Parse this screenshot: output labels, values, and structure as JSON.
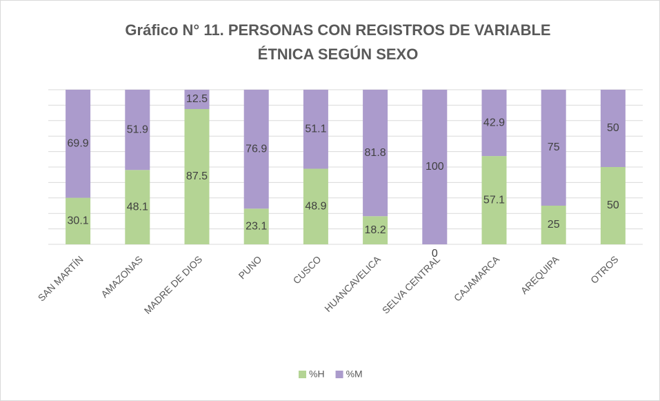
{
  "chart_data": {
    "type": "stacked_bar",
    "title": [
      "Gráfico N° 11. PERSONAS CON REGISTROS DE VARIABLE",
      "ÉTNICA SEGÚN SEXO"
    ],
    "categories": [
      "SAN MARTÍN",
      "AMAZONAS",
      "MADRE DE DIOS",
      "PUNO",
      "CUSCO",
      "HUANCAVELICA",
      "SELVA CENTRAL",
      "CAJAMARCA",
      "AREQUIPA",
      "OTROS"
    ],
    "series": [
      {
        "name": "%H",
        "color": "#b4d494",
        "values": [
          30.1,
          48.1,
          87.5,
          23.1,
          48.9,
          18.2,
          0,
          57.1,
          25,
          50
        ]
      },
      {
        "name": "%M",
        "color": "#ab9bcc",
        "values": [
          69.9,
          51.9,
          12.5,
          76.9,
          51.1,
          81.8,
          100,
          42.9,
          75,
          50
        ]
      }
    ],
    "ylim": [
      0,
      100
    ],
    "yticks": [
      0,
      10,
      20,
      30,
      40,
      50,
      60,
      70,
      80,
      90,
      100
    ],
    "grid": true,
    "legend": "bottom"
  }
}
